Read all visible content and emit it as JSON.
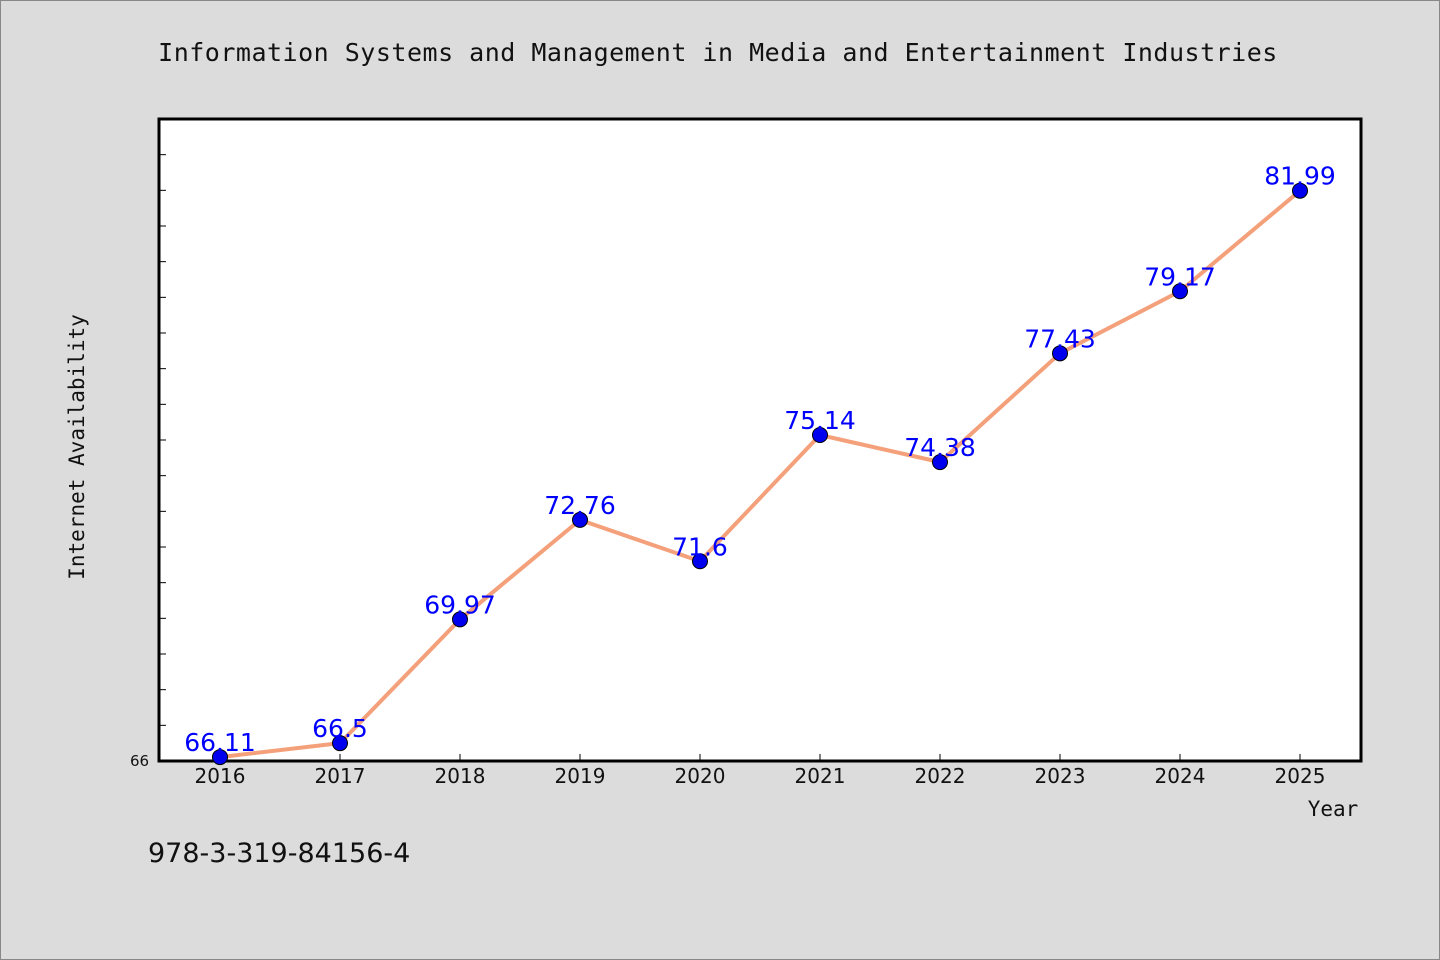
{
  "chart_data": {
    "type": "line",
    "title": "Information Systems and Management in Media and Entertainment Industries",
    "xlabel": "Year",
    "ylabel": "Internet Availability",
    "categories": [
      "2016",
      "2017",
      "2018",
      "2019",
      "2020",
      "2021",
      "2022",
      "2023",
      "2024",
      "2025"
    ],
    "series": [
      {
        "values": [
          66.11,
          66.5,
          69.97,
          72.76,
          71.6,
          75.14,
          74.38,
          77.43,
          79.17,
          81.99
        ],
        "labels": [
          "66.11",
          "66.5",
          "69.97",
          "72.76",
          "71.6",
          "75.14",
          "74.38",
          "77.43",
          "79.17",
          "81.99"
        ],
        "line_color": "#f4a07a",
        "marker_color": "#0000ee"
      }
    ],
    "ylim": [
      66,
      84
    ],
    "y_min_label": "66",
    "grid": false,
    "legend": "none"
  },
  "footer_text": "978-3-319-84156-4",
  "colors": {
    "background": "#dcdcdc",
    "plot_background": "#ffffff",
    "label_color": "#0000ff"
  }
}
